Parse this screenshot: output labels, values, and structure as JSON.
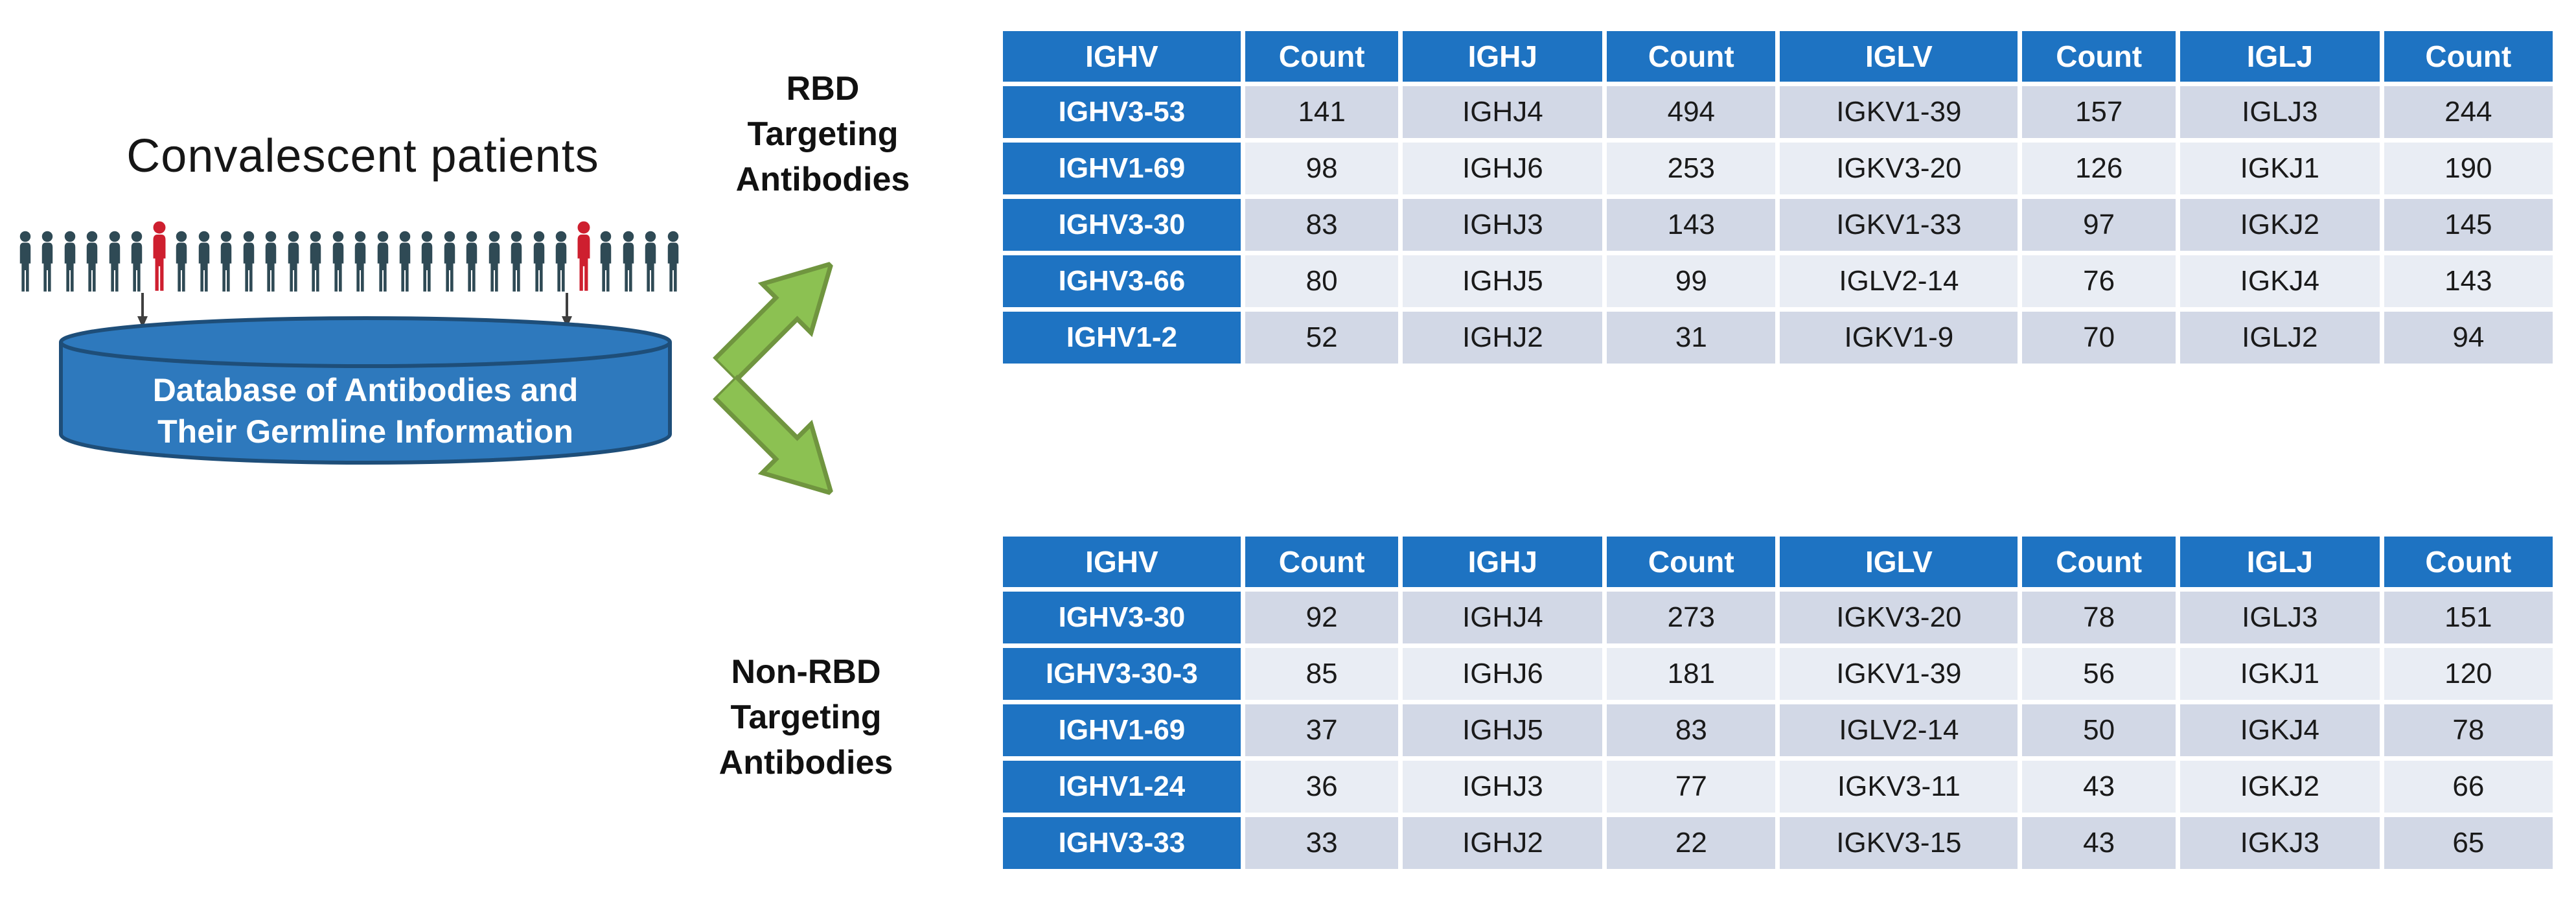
{
  "left_panel": {
    "title": "Convalescent patients",
    "people": {
      "count": 30,
      "red_indices": [
        6,
        25
      ]
    },
    "database": {
      "line1": "Database of Antibodies and",
      "line2": "Their Germline Information"
    }
  },
  "flow": {
    "rbd_label": {
      "lines": [
        "RBD",
        "Targeting",
        "Antibodies"
      ]
    },
    "non_rbd_label": {
      "lines": [
        "Non-RBD",
        "Targeting",
        "Antibodies"
      ]
    }
  },
  "tables": {
    "rbd": {
      "columns": [
        "IGHV",
        "Count",
        "IGHJ",
        "Count",
        "IGLV",
        "Count",
        "IGLJ",
        "Count"
      ],
      "rows": [
        [
          "IGHV3-53",
          "141",
          "IGHJ4",
          "494",
          "IGKV1-39",
          "157",
          "IGLJ3",
          "244"
        ],
        [
          "IGHV1-69",
          "98",
          "IGHJ6",
          "253",
          "IGKV3-20",
          "126",
          "IGKJ1",
          "190"
        ],
        [
          "IGHV3-30",
          "83",
          "IGHJ3",
          "143",
          "IGKV1-33",
          "97",
          "IGKJ2",
          "145"
        ],
        [
          "IGHV3-66",
          "80",
          "IGHJ5",
          "99",
          "IGLV2-14",
          "76",
          "IGKJ4",
          "143"
        ],
        [
          "IGHV1-2",
          "52",
          "IGHJ2",
          "31",
          "IGKV1-9",
          "70",
          "IGLJ2",
          "94"
        ]
      ]
    },
    "non_rbd": {
      "columns": [
        "IGHV",
        "Count",
        "IGHJ",
        "Count",
        "IGLV",
        "Count",
        "IGLJ",
        "Count"
      ],
      "rows": [
        [
          "IGHV3-30",
          "92",
          "IGHJ4",
          "273",
          "IGKV3-20",
          "78",
          "IGLJ3",
          "151"
        ],
        [
          "IGHV3-30-3",
          "85",
          "IGHJ6",
          "181",
          "IGKV1-39",
          "56",
          "IGKJ1",
          "120"
        ],
        [
          "IGHV1-69",
          "37",
          "IGHJ5",
          "83",
          "IGLV2-14",
          "50",
          "IGKJ4",
          "78"
        ],
        [
          "IGHV1-24",
          "36",
          "IGHJ3",
          "77",
          "IGKV3-11",
          "43",
          "IGKJ2",
          "66"
        ],
        [
          "IGHV3-33",
          "33",
          "IGHJ2",
          "22",
          "IGKV3-15",
          "43",
          "IGKJ3",
          "65"
        ]
      ]
    }
  },
  "colors": {
    "table_header_bg": "#1E73C2",
    "table_row_dark": "#D2D8E6",
    "table_row_light": "#E9EDF4",
    "table_text": "#1A1A1A",
    "person": "#2F4A55",
    "person_highlight": "#CE1F2F",
    "cylinder_fill": "#2E79BD",
    "cylinder_stroke": "#1E4E79",
    "arrow_fill": "#8CC152",
    "arrow_stroke": "#70953F",
    "pointer_arrow": "#3F3F3F"
  }
}
